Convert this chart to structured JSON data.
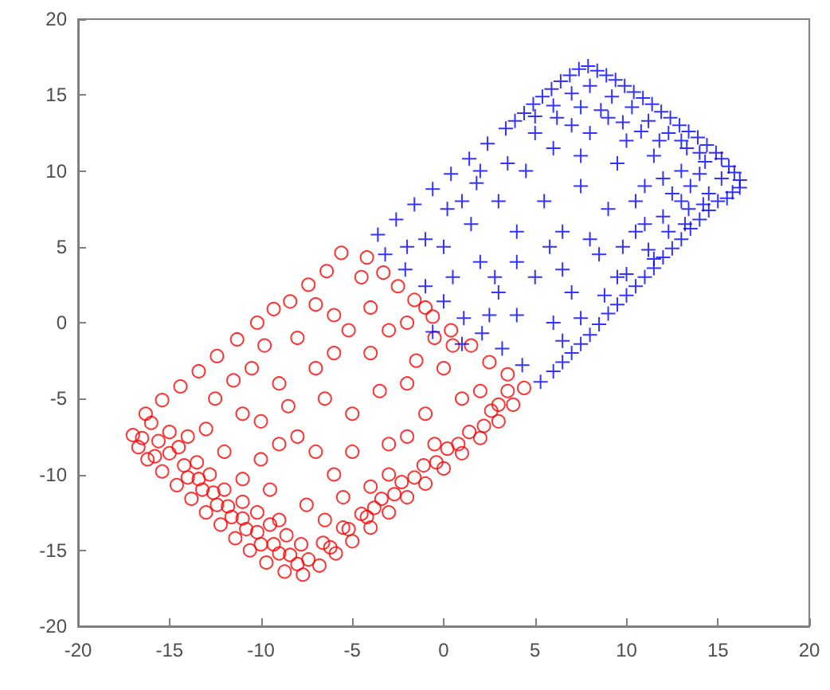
{
  "chart_data": {
    "type": "scatter",
    "xlim": [
      -20,
      20
    ],
    "xticks": [
      -20,
      -15,
      -10,
      -5,
      0,
      5,
      10,
      15,
      20
    ],
    "ylim": [
      -20,
      20
    ],
    "yticks": [
      -20,
      -15,
      -10,
      -5,
      0,
      5,
      10,
      15,
      20
    ],
    "series": [
      {
        "color": "#ff0000",
        "marker": "circle",
        "x": [
          -17,
          -16.7,
          -16.2,
          -15.4,
          -14.6,
          -13.8,
          -13,
          -12.2,
          -11.4,
          -10.6,
          -9.7,
          -8.7,
          -7.7,
          -16,
          -15.6,
          -15,
          -14.2,
          -13.4,
          -12.6,
          -11.8,
          -11,
          -10.2,
          -9.3,
          -8.4,
          -7.4,
          -15,
          -14.5,
          -13.5,
          -12.8,
          -12,
          -11,
          -10.2,
          -9.5,
          -8.6,
          -7.8,
          -6.8,
          -5.9,
          -5,
          -4,
          -3,
          -2,
          -1,
          0,
          1,
          2,
          3,
          3.8,
          4.4,
          -6.6,
          -5.5,
          -4.5,
          -3.4,
          -2.3,
          -1.1,
          0.2,
          1.4,
          2.6,
          3.5,
          -16.3,
          -15.4,
          -14.4,
          -13.4,
          -12.4,
          -11.3,
          -10.2,
          -9.3,
          -8.4,
          -7.4,
          -6.4,
          -5.6,
          -4.2,
          -3.3,
          -2.5,
          -1.6,
          -0.6,
          0.4,
          1.5,
          2.5,
          3.5,
          -13,
          -12,
          -11,
          -10,
          -9,
          -8,
          -7,
          -6,
          -5,
          -4,
          -3,
          -2,
          -1,
          0,
          1,
          -9.5,
          -11,
          -7.5,
          -5.5,
          -3,
          -8,
          -6,
          -4,
          -3,
          -2,
          -12.5,
          -10.5,
          -8.5,
          -6.5,
          -5,
          -2,
          -0.5,
          2,
          -14,
          -9,
          -6.5,
          -4,
          -1.5,
          -3.5,
          -7,
          -9,
          -10,
          -11.5,
          -6,
          -4.5,
          -7,
          -9.8,
          -5.2,
          -1,
          0.5,
          -0.5,
          -16.5,
          -15.8,
          -14,
          -13.2,
          -12.4,
          -11.6,
          -10.8,
          -10,
          -9,
          -8,
          -6.2,
          -5.2,
          -4.2,
          -3.8,
          -2.7,
          -1.6,
          -0.4,
          0.8,
          2.2,
          3
        ],
        "values": [
          -7.4,
          -8.2,
          -9,
          -9.8,
          -10.7,
          -11.6,
          -12.5,
          -13.3,
          -14.2,
          -15,
          -15.8,
          -16.4,
          -16.6,
          -6.6,
          -7.8,
          -8.6,
          -9.4,
          -10.3,
          -11.2,
          -12.1,
          -12.9,
          -13.8,
          -14.6,
          -15.3,
          -15.6,
          -7.2,
          -8.2,
          -9.2,
          -10,
          -11,
          -11.8,
          -12.5,
          -13.3,
          -14,
          -14.6,
          -16,
          -15.2,
          -14.4,
          -13.5,
          -12.5,
          -11.5,
          -10.6,
          -9.6,
          -8.6,
          -7.6,
          -6.5,
          -5.4,
          -4.3,
          -14.5,
          -13.5,
          -12.6,
          -11.6,
          -10.5,
          -9.4,
          -8.3,
          -7.2,
          -5.8,
          -4.5,
          -6,
          -5.1,
          -4.2,
          -3.2,
          -2.2,
          -1.1,
          0,
          0.9,
          1.4,
          2.5,
          3.4,
          4.6,
          4.3,
          3.3,
          2.4,
          1.5,
          0.4,
          -0.5,
          -1.5,
          -2.6,
          -3.4,
          -7,
          -8.5,
          -6,
          -9,
          -4,
          -7.5,
          -3,
          -10,
          -6,
          -2,
          -8,
          -4,
          -6,
          -3,
          -5,
          -11,
          -10.3,
          -12,
          -11.5,
          -10,
          -1,
          0.5,
          1,
          -0.5,
          0,
          -5,
          -3,
          -5.5,
          -5,
          -8.5,
          -7.5,
          -8,
          -4.5,
          -7.5,
          -13,
          -13,
          -10.8,
          -2.5,
          -4.5,
          -8.5,
          -8,
          -6.5,
          -3.8,
          -2,
          3,
          1.2,
          -1.5,
          -0.5,
          1,
          -1.5,
          -1,
          -7.6,
          -8.8,
          -10.2,
          -11,
          -12,
          -12.8,
          -13.6,
          -14.6,
          -15.2,
          -15.9,
          -14.8,
          -13.6,
          -12.8,
          -12.2,
          -11.3,
          -10.2,
          -9.2,
          -8,
          -6.8,
          -5.4
        ]
      },
      {
        "color": "#0000ff",
        "marker": "cross",
        "x": [
          -3.6,
          -2.6,
          -1.6,
          -0.6,
          0.4,
          1.4,
          2.4,
          3.4,
          4.4,
          5.4,
          6.4,
          7.4,
          8.4,
          9.4,
          10.4,
          11.4,
          12.4,
          13.4,
          14.4,
          15.2,
          15.9,
          16.2,
          8,
          9.2,
          10.3,
          11.2,
          12.3,
          13.3,
          14.3,
          15.2,
          7,
          6,
          6,
          7,
          8,
          9,
          10,
          11,
          12,
          13,
          14,
          15,
          15.8,
          6.5,
          7.5,
          8.8,
          10,
          11.2,
          12.3,
          13.4,
          14.5,
          9.5,
          12,
          -3.2,
          -2.1,
          -1,
          0,
          1.1,
          2.1,
          3.2,
          4.3,
          5.3,
          -0.6,
          1,
          0,
          1.5,
          2,
          3,
          4,
          4.5,
          5,
          5.5,
          6,
          6.5,
          7,
          7.5,
          8,
          8.5,
          9,
          9.5,
          10,
          10.5,
          11,
          11.5,
          12,
          13,
          13.5,
          3,
          2.5,
          4,
          6,
          -1,
          1,
          3.5,
          5,
          7,
          9,
          4,
          0.5,
          2,
          8,
          10.5,
          12.5,
          14,
          7.5,
          6.5,
          3.9,
          4.9,
          5.9,
          6.9,
          7.9,
          8.9,
          9.9,
          10.9,
          11.9,
          12.9,
          13.9,
          14.9,
          15.6,
          16.2,
          5,
          6.2,
          7.5,
          8.6,
          9.8,
          10.8,
          11.8,
          13,
          14,
          15.5,
          6.5,
          7.5,
          8.5,
          9.5,
          10.5,
          11.5,
          12.5,
          13.5,
          14.5,
          14.2,
          13.2,
          11.5,
          1.8,
          0.2,
          -2,
          2.8,
          5.8,
          9.8,
          11,
          13
        ],
        "values": [
          5.8,
          6.8,
          7.8,
          8.8,
          9.8,
          10.8,
          11.8,
          12.8,
          13.8,
          14.9,
          15.9,
          16.7,
          16.6,
          16,
          15.2,
          14.4,
          13.5,
          12.6,
          11.7,
          10.8,
          9.9,
          8.9,
          15.6,
          14.9,
          14.2,
          13.3,
          12.5,
          11.5,
          10.6,
          9.5,
          15.1,
          14.3,
          -3.2,
          -2,
          -0.8,
          0.6,
          1.8,
          3,
          4.3,
          5.5,
          6.8,
          8,
          8.6,
          -1.2,
          0.3,
          1.8,
          3.2,
          4.8,
          6,
          7.5,
          8.5,
          3,
          7,
          4.5,
          3.5,
          2.4,
          1.4,
          0.3,
          -0.7,
          -1.7,
          -2.8,
          -3.9,
          -0.6,
          -1.4,
          5,
          6.5,
          4,
          8,
          6,
          10,
          3,
          8,
          11.5,
          6,
          2,
          9,
          12.5,
          4.5,
          7.5,
          10.5,
          12,
          6,
          9,
          11,
          9.5,
          10,
          9,
          2,
          0.5,
          0.5,
          0,
          5.5,
          8,
          10.5,
          12.5,
          13,
          13.5,
          4,
          3,
          10,
          5.5,
          8,
          8.5,
          9.8,
          11,
          3.5,
          13.3,
          14.4,
          15.4,
          16.3,
          16.9,
          16.3,
          15.6,
          14.8,
          13.9,
          13,
          12.2,
          11.2,
          10.3,
          9.4,
          13.6,
          13.5,
          14.2,
          14,
          13.2,
          12.6,
          12,
          12,
          11.2,
          8.2,
          -2.6,
          -1.4,
          -0.1,
          1.2,
          2.4,
          3.6,
          4.9,
          6.2,
          7.4,
          7.8,
          6.5,
          4.2,
          9.2,
          7.5,
          5,
          3,
          5,
          5,
          6.5,
          8
        ]
      }
    ]
  }
}
